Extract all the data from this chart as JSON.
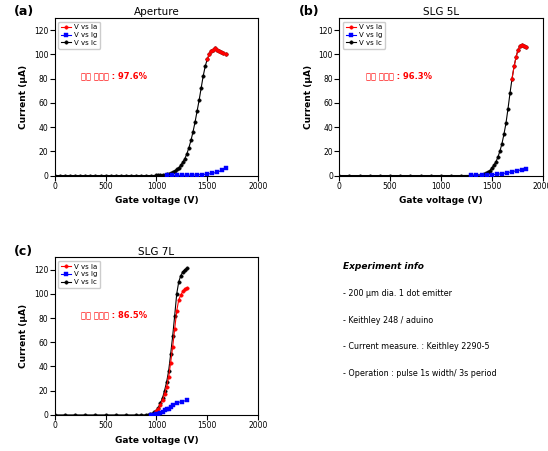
{
  "panels": [
    {
      "label": "(a)",
      "title": "Aperture",
      "annotation": "평균 투과율 : 97.6%",
      "Ic": {
        "x": [
          0,
          50,
          100,
          150,
          200,
          250,
          300,
          350,
          400,
          450,
          500,
          550,
          600,
          650,
          700,
          750,
          800,
          850,
          900,
          950,
          1000,
          1020,
          1040,
          1060,
          1080,
          1100,
          1120,
          1140,
          1160,
          1180,
          1200,
          1220,
          1240,
          1260,
          1280,
          1300,
          1320,
          1340,
          1360,
          1380,
          1400,
          1420,
          1440,
          1460,
          1480,
          1500,
          1520,
          1540,
          1560,
          1580,
          1600,
          1620,
          1640,
          1660,
          1680
        ],
        "y": [
          0,
          0,
          0,
          0,
          0,
          0,
          0,
          0,
          0,
          0,
          0,
          0,
          0,
          0,
          0,
          0,
          0,
          0,
          0,
          0,
          0.1,
          0.2,
          0.3,
          0.5,
          0.7,
          1.0,
          1.5,
          2.0,
          2.8,
          3.8,
          5.0,
          6.5,
          8.5,
          11,
          14,
          18,
          23,
          29,
          36,
          44,
          53,
          62,
          72,
          82,
          90,
          96,
          100,
          103,
          104,
          105,
          104,
          103,
          102,
          101,
          100
        ]
      },
      "Ia": {
        "x": [
          1500,
          1520,
          1540,
          1560,
          1580,
          1600,
          1620,
          1640,
          1660,
          1680
        ],
        "y": [
          96,
          100,
          103,
          104,
          105,
          104,
          103,
          102,
          101,
          100
        ]
      },
      "Ig": {
        "x": [
          1100,
          1150,
          1200,
          1250,
          1300,
          1350,
          1400,
          1450,
          1500,
          1550,
          1600,
          1650,
          1680
        ],
        "y": [
          0.05,
          0.08,
          0.12,
          0.18,
          0.25,
          0.35,
          0.5,
          0.8,
          1.2,
          1.8,
          2.8,
          4.5,
          6
        ]
      }
    },
    {
      "label": "(b)",
      "title": "SLG 5L",
      "annotation": "평균 투과율 : 96.3%",
      "Ic": {
        "x": [
          0,
          100,
          200,
          300,
          400,
          500,
          600,
          700,
          800,
          900,
          1000,
          1100,
          1200,
          1300,
          1350,
          1400,
          1420,
          1440,
          1460,
          1480,
          1500,
          1520,
          1540,
          1560,
          1580,
          1600,
          1620,
          1640,
          1660,
          1680,
          1700,
          1720,
          1740,
          1760,
          1780,
          1800,
          1820,
          1840
        ],
        "y": [
          0,
          0,
          0,
          0,
          0,
          0,
          0,
          0,
          0,
          0,
          0,
          0,
          0,
          0.1,
          0.3,
          0.7,
          1.2,
          1.8,
          2.8,
          4.0,
          6.0,
          8.5,
          11,
          15,
          20,
          26,
          34,
          43,
          55,
          68,
          80,
          90,
          98,
          104,
          107,
          108,
          107,
          106
        ]
      },
      "Ia": {
        "x": [
          1700,
          1720,
          1740,
          1760,
          1780,
          1800,
          1820,
          1840
        ],
        "y": [
          80,
          90,
          98,
          104,
          107,
          108,
          107,
          106
        ]
      },
      "Ig": {
        "x": [
          1300,
          1350,
          1400,
          1450,
          1500,
          1550,
          1600,
          1650,
          1700,
          1750,
          1800,
          1840
        ],
        "y": [
          0.05,
          0.1,
          0.2,
          0.35,
          0.6,
          1.0,
          1.5,
          2.2,
          3.2,
          4.0,
          4.8,
          5.5
        ]
      }
    },
    {
      "label": "(c)",
      "title": "SLG 7L",
      "annotation": "평균 투과율 : 86.5%",
      "Ic": {
        "x": [
          0,
          100,
          200,
          300,
          400,
          500,
          600,
          700,
          800,
          850,
          900,
          920,
          940,
          960,
          980,
          1000,
          1020,
          1040,
          1060,
          1080,
          1100,
          1120,
          1140,
          1160,
          1180,
          1200,
          1220,
          1240,
          1260,
          1280,
          1300
        ],
        "y": [
          0,
          0,
          0,
          0,
          0,
          0,
          0,
          0,
          0,
          0,
          0.1,
          0.2,
          0.5,
          1.0,
          2.0,
          3.5,
          6,
          10,
          14,
          20,
          27,
          36,
          50,
          65,
          82,
          100,
          110,
          115,
          118,
          120,
          121
        ]
      },
      "Ia": {
        "x": [
          1000,
          1020,
          1040,
          1060,
          1080,
          1100,
          1120,
          1140,
          1160,
          1180,
          1200,
          1220,
          1240,
          1260,
          1280,
          1300
        ],
        "y": [
          3.0,
          5.2,
          8.5,
          12,
          17,
          23,
          31,
          43,
          56,
          71,
          86,
          95,
          99,
          102,
          104,
          105
        ]
      },
      "Ig": {
        "x": [
          950,
          980,
          1000,
          1020,
          1040,
          1060,
          1080,
          1100,
          1120,
          1140,
          1160,
          1200,
          1250,
          1300
        ],
        "y": [
          0.05,
          0.2,
          0.5,
          1.0,
          1.8,
          2.8,
          3.8,
          4.5,
          5.0,
          6.5,
          8.0,
          10,
          11,
          12
        ]
      }
    }
  ],
  "experiment_info": [
    "Experiment info",
    "200 μm dia. 1 dot emitter",
    "Keithley 248 / aduino",
    "Current measure. : Keithley 2290-5",
    "Operation : pulse 1s width/ 3s period"
  ],
  "xlim": [
    0,
    2000
  ],
  "ylim": [
    0,
    130
  ],
  "yticks": [
    0,
    20,
    40,
    60,
    80,
    100,
    120
  ],
  "xticks": [
    0,
    500,
    1000,
    1500,
    2000
  ],
  "colors": {
    "Ia": "#ff0000",
    "Ig": "#0000ff",
    "Ic": "#000000"
  }
}
